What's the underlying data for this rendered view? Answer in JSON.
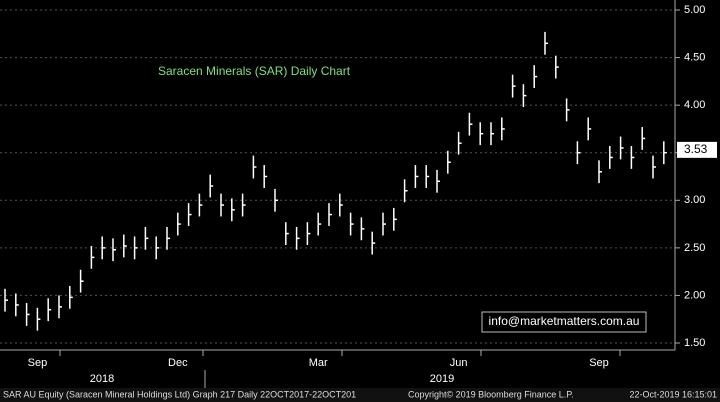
{
  "chart_data": {
    "type": "ohlc",
    "title": "Saracen Minerals (SAR) Daily Chart",
    "title_color": "#7fe07f",
    "categories": [
      null,
      null,
      null,
      "Sep",
      null,
      null,
      null,
      null,
      null,
      null,
      null,
      null,
      null,
      null,
      null,
      null,
      "Dec",
      null,
      null,
      null,
      null,
      null,
      null,
      null,
      null,
      null,
      null,
      null,
      null,
      "Mar",
      null,
      null,
      null,
      null,
      null,
      null,
      null,
      null,
      null,
      null,
      null,
      null,
      "Jun",
      null,
      null,
      null,
      null,
      null,
      null,
      null,
      null,
      null,
      null,
      null,
      null,
      "Sep",
      null,
      null,
      null,
      null,
      null,
      null
    ],
    "years": [
      "2018",
      "2019"
    ],
    "series": [
      {
        "color": "#ffffff",
        "values": [
          1.95,
          1.9,
          1.8,
          1.75,
          1.85,
          1.88,
          1.98,
          2.15,
          2.4,
          2.5,
          2.48,
          2.52,
          2.5,
          2.6,
          2.5,
          2.6,
          2.75,
          2.85,
          2.95,
          3.15,
          2.95,
          2.9,
          2.95,
          3.35,
          3.25,
          3.0,
          2.65,
          2.6,
          2.65,
          2.75,
          2.85,
          2.95,
          2.75,
          2.7,
          2.55,
          2.75,
          2.8,
          3.1,
          3.25,
          3.25,
          3.2,
          3.4,
          3.6,
          3.8,
          3.7,
          3.7,
          3.75,
          4.2,
          4.1,
          4.3,
          4.65,
          4.4,
          3.95,
          3.5,
          3.75,
          3.3,
          3.45,
          3.55,
          3.45,
          3.65,
          3.35,
          3.5
        ],
        "high": [
          2.07,
          2.02,
          1.92,
          1.87,
          1.97,
          2.0,
          2.1,
          2.27,
          2.52,
          2.62,
          2.6,
          2.64,
          2.62,
          2.72,
          2.62,
          2.72,
          2.87,
          2.97,
          3.07,
          3.27,
          3.07,
          3.02,
          3.07,
          3.47,
          3.37,
          3.12,
          2.77,
          2.72,
          2.77,
          2.87,
          2.97,
          3.07,
          2.87,
          2.82,
          2.67,
          2.87,
          2.92,
          3.22,
          3.37,
          3.37,
          3.32,
          3.52,
          3.72,
          3.92,
          3.82,
          3.82,
          3.87,
          4.32,
          4.22,
          4.42,
          4.77,
          4.52,
          4.07,
          3.62,
          3.87,
          3.42,
          3.57,
          3.67,
          3.57,
          3.77,
          3.47,
          3.62
        ],
        "low": [
          1.83,
          1.78,
          1.68,
          1.63,
          1.73,
          1.76,
          1.86,
          2.03,
          2.28,
          2.38,
          2.36,
          2.4,
          2.38,
          2.48,
          2.38,
          2.48,
          2.63,
          2.73,
          2.83,
          3.03,
          2.83,
          2.78,
          2.83,
          3.23,
          3.13,
          2.88,
          2.53,
          2.48,
          2.53,
          2.63,
          2.73,
          2.83,
          2.63,
          2.58,
          2.43,
          2.63,
          2.68,
          2.98,
          3.13,
          3.13,
          3.08,
          3.28,
          3.48,
          3.68,
          3.58,
          3.58,
          3.63,
          4.08,
          3.98,
          4.18,
          4.53,
          4.28,
          3.83,
          3.38,
          3.63,
          3.18,
          3.33,
          3.43,
          3.33,
          3.53,
          3.23,
          3.38
        ]
      }
    ],
    "last_price": 3.53,
    "ylim": [
      1.5,
      5.0
    ],
    "yticks": [
      {
        "value": 1.5,
        "label": "1.50"
      },
      {
        "value": 2,
        "label": "2.00"
      },
      {
        "value": 2.5,
        "label": "2.50"
      },
      {
        "value": 3,
        "label": "3.00"
      },
      {
        "value": 3.5,
        "label": "3.50"
      },
      {
        "value": 4,
        "label": "4.00"
      },
      {
        "value": 4.5,
        "label": "4.50"
      },
      {
        "value": 5,
        "label": "5.00"
      }
    ],
    "grid": true,
    "watermark": "info@marketmatters.com.au",
    "footer": {
      "left": "SAR AU Equity (Saracen Mineral Holdings Ltd) Graph 217  Daily 22OCT2017-22OCT201",
      "center": "Copyright© 2019 Bloomberg Finance L.P.",
      "right": "22-Oct-2019 16:15:01"
    }
  }
}
